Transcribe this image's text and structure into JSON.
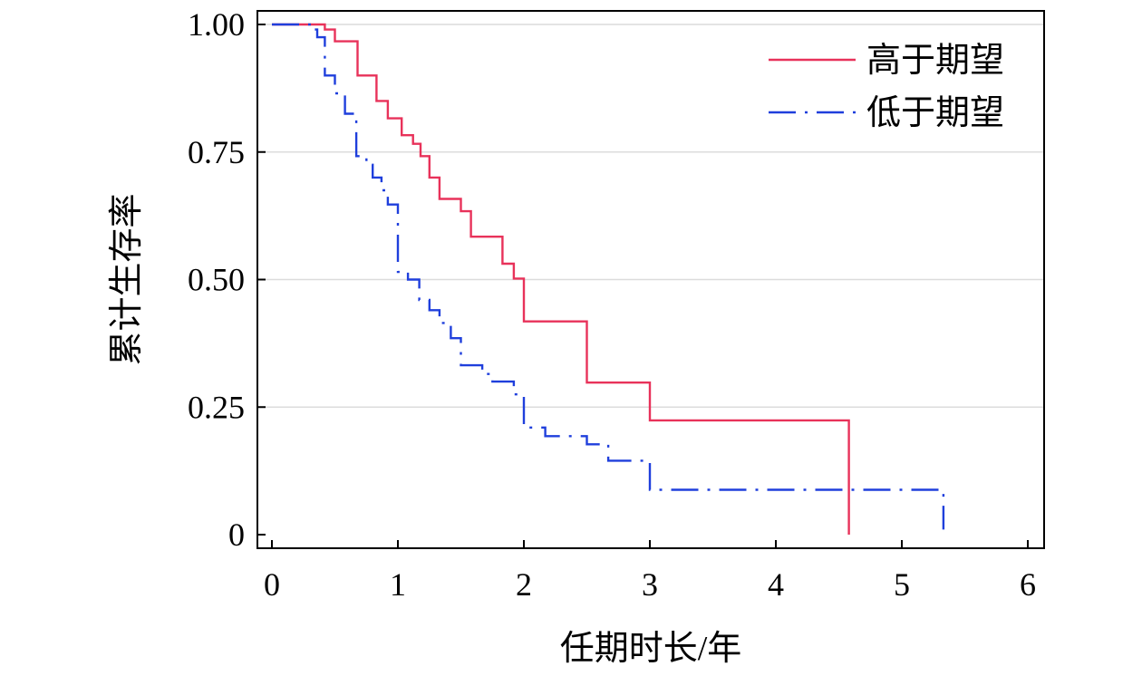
{
  "chart_data": {
    "type": "line",
    "title": "",
    "xlabel": "任期时长/年",
    "ylabel": "累计生存率",
    "xlim": [
      0,
      6
    ],
    "ylim": [
      0,
      1.0
    ],
    "xticks": [
      "0",
      "1",
      "2",
      "3",
      "4",
      "5",
      "6"
    ],
    "yticks": [
      "0",
      "0.25",
      "0.50",
      "0.75",
      "1.00"
    ],
    "grid": "horizontal",
    "legend_position": "top-right",
    "series": [
      {
        "name": "高于期望",
        "color": "#e8325a",
        "style": "solid",
        "step_points": [
          [
            0,
            1.0
          ],
          [
            0.42,
            1.0
          ],
          [
            0.42,
            0.99
          ],
          [
            0.5,
            0.99
          ],
          [
            0.5,
            0.967
          ],
          [
            0.68,
            0.967
          ],
          [
            0.68,
            0.9
          ],
          [
            0.83,
            0.9
          ],
          [
            0.83,
            0.85
          ],
          [
            0.92,
            0.85
          ],
          [
            0.92,
            0.816
          ],
          [
            1.03,
            0.816
          ],
          [
            1.03,
            0.783
          ],
          [
            1.12,
            0.783
          ],
          [
            1.12,
            0.766
          ],
          [
            1.18,
            0.766
          ],
          [
            1.18,
            0.742
          ],
          [
            1.25,
            0.742
          ],
          [
            1.25,
            0.7
          ],
          [
            1.33,
            0.7
          ],
          [
            1.33,
            0.658
          ],
          [
            1.5,
            0.658
          ],
          [
            1.5,
            0.634
          ],
          [
            1.58,
            0.634
          ],
          [
            1.58,
            0.584
          ],
          [
            1.83,
            0.584
          ],
          [
            1.83,
            0.531
          ],
          [
            1.92,
            0.531
          ],
          [
            1.92,
            0.502
          ],
          [
            2.0,
            0.502
          ],
          [
            2.0,
            0.418
          ],
          [
            2.5,
            0.418
          ],
          [
            2.5,
            0.298
          ],
          [
            3.0,
            0.298
          ],
          [
            3.0,
            0.224
          ],
          [
            4.58,
            0.224
          ],
          [
            4.58,
            0.0
          ]
        ]
      },
      {
        "name": "低于期望",
        "color": "#1f3fdc",
        "style": "dashdot",
        "step_points": [
          [
            0,
            1.0
          ],
          [
            0.3,
            1.0
          ],
          [
            0.3,
            0.99
          ],
          [
            0.36,
            0.99
          ],
          [
            0.36,
            0.975
          ],
          [
            0.42,
            0.975
          ],
          [
            0.42,
            0.9
          ],
          [
            0.5,
            0.9
          ],
          [
            0.5,
            0.865
          ],
          [
            0.58,
            0.865
          ],
          [
            0.58,
            0.825
          ],
          [
            0.67,
            0.825
          ],
          [
            0.67,
            0.742
          ],
          [
            0.75,
            0.742
          ],
          [
            0.75,
            0.725
          ],
          [
            0.8,
            0.725
          ],
          [
            0.8,
            0.7
          ],
          [
            0.87,
            0.7
          ],
          [
            0.87,
            0.675
          ],
          [
            0.92,
            0.675
          ],
          [
            0.92,
            0.647
          ],
          [
            1.0,
            0.647
          ],
          [
            1.0,
            0.515
          ],
          [
            1.08,
            0.515
          ],
          [
            1.08,
            0.5
          ],
          [
            1.17,
            0.5
          ],
          [
            1.17,
            0.46
          ],
          [
            1.25,
            0.46
          ],
          [
            1.25,
            0.44
          ],
          [
            1.33,
            0.44
          ],
          [
            1.33,
            0.415
          ],
          [
            1.42,
            0.415
          ],
          [
            1.42,
            0.385
          ],
          [
            1.5,
            0.385
          ],
          [
            1.5,
            0.332
          ],
          [
            1.67,
            0.332
          ],
          [
            1.67,
            0.315
          ],
          [
            1.75,
            0.315
          ],
          [
            1.75,
            0.3
          ],
          [
            1.92,
            0.3
          ],
          [
            1.92,
            0.275
          ],
          [
            2.0,
            0.275
          ],
          [
            2.0,
            0.21
          ],
          [
            2.17,
            0.21
          ],
          [
            2.17,
            0.193
          ],
          [
            2.5,
            0.193
          ],
          [
            2.5,
            0.177
          ],
          [
            2.67,
            0.177
          ],
          [
            2.67,
            0.145
          ],
          [
            3.0,
            0.145
          ],
          [
            3.0,
            0.088
          ],
          [
            5.33,
            0.088
          ],
          [
            5.33,
            0.01
          ]
        ]
      }
    ]
  }
}
